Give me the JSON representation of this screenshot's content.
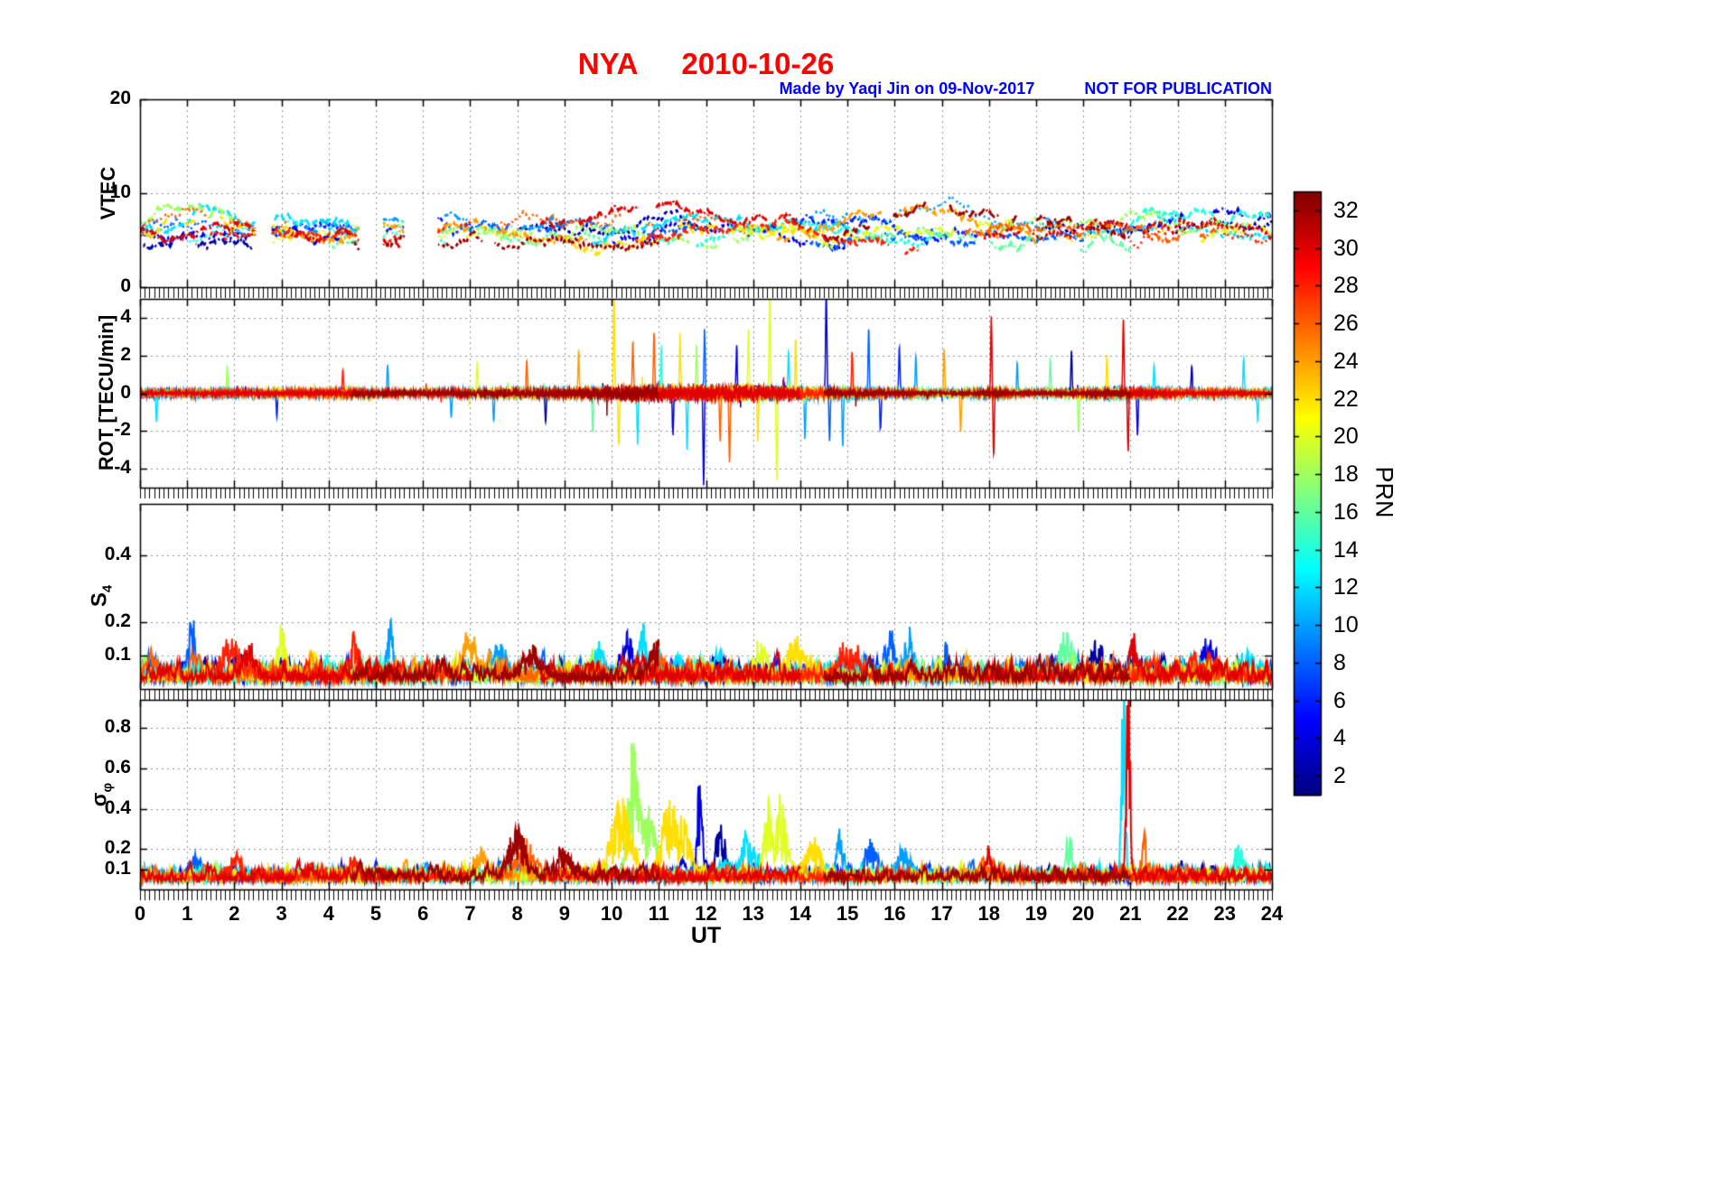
{
  "title": {
    "station": "NYA",
    "date": "2010-10-26"
  },
  "subtitle": {
    "made_by": "Made by Yaqi Jin on 09-Nov-2017",
    "warning": "NOT FOR PUBLICATION"
  },
  "x_axis": {
    "label": "UT",
    "min": 0,
    "max": 24,
    "tick_step": 1,
    "minor_tick_step": 0.1
  },
  "colorbar": {
    "label": "PRN",
    "min": 1,
    "max": 33,
    "ticks": [
      2,
      4,
      6,
      8,
      10,
      12,
      14,
      16,
      18,
      20,
      22,
      24,
      26,
      28,
      30,
      32
    ],
    "colormap": "jet"
  },
  "chart_data": {
    "type": "line",
    "title": "NYA 2010-10-26",
    "xlabel": "UT",
    "x_range": [
      0,
      24
    ],
    "colormap": "jet",
    "prn_range": [
      1,
      32
    ],
    "panels": [
      {
        "id": "vtec",
        "ylabel": "VTEC",
        "ymin": 0,
        "ymax": 20,
        "yticks": [
          0,
          10,
          20
        ]
      },
      {
        "id": "rot",
        "ylabel": "ROT [TECU/min]",
        "ymin": -5,
        "ymax": 5,
        "yticks": [
          -4,
          -2,
          0,
          2,
          4
        ]
      },
      {
        "id": "s4",
        "ylabel_main": "S",
        "ylabel_sub": "4",
        "ymin": 0,
        "ymax": 0.554,
        "yticks": [
          0.1,
          0.2,
          0.4
        ]
      },
      {
        "id": "sigma",
        "ylabel_main": "σ",
        "ylabel_sub": "φ",
        "ymin": 0,
        "ymax": 0.94,
        "yticks": [
          0.1,
          0.2,
          0.4,
          0.6,
          0.8
        ]
      }
    ],
    "passes": [
      [
        2,
        0,
        2.4
      ],
      [
        2,
        8,
        13.5
      ],
      [
        2,
        19,
        24
      ],
      [
        4,
        0,
        4.5
      ],
      [
        4,
        10,
        15
      ],
      [
        4,
        20.5,
        24
      ],
      [
        6,
        2.8,
        7
      ],
      [
        6,
        13,
        18
      ],
      [
        8,
        0,
        3
      ],
      [
        8,
        6.8,
        12
      ],
      [
        8,
        14.2,
        20
      ],
      [
        10,
        3.5,
        9
      ],
      [
        10,
        14,
        19.5
      ],
      [
        12,
        0,
        5
      ],
      [
        12,
        9.5,
        15.5
      ],
      [
        12,
        20,
        24
      ],
      [
        14,
        1,
        6.5
      ],
      [
        14,
        11,
        17
      ],
      [
        14,
        21,
        24
      ],
      [
        16,
        4,
        10
      ],
      [
        16,
        15.5,
        21
      ],
      [
        18,
        0,
        2.2
      ],
      [
        18,
        7,
        13
      ],
      [
        18,
        18,
        23.5
      ],
      [
        20,
        2.5,
        8.5
      ],
      [
        20,
        12.5,
        18.5
      ],
      [
        20,
        22.5,
        24
      ],
      [
        22,
        0,
        4.8
      ],
      [
        22,
        9,
        14.5
      ],
      [
        22,
        19.5,
        24
      ],
      [
        24,
        3,
        9.5
      ],
      [
        24,
        13.5,
        19
      ],
      [
        26,
        0,
        3.8
      ],
      [
        26,
        7.5,
        13
      ],
      [
        26,
        17.5,
        23
      ],
      [
        28,
        1.5,
        7
      ],
      [
        28,
        10.5,
        16.5
      ],
      [
        28,
        21,
        24
      ],
      [
        30,
        0,
        5.5
      ],
      [
        30,
        8.5,
        14
      ],
      [
        30,
        17.9,
        24
      ],
      [
        32,
        4.5,
        11
      ],
      [
        32,
        14.5,
        21
      ]
    ],
    "generation": {
      "seed": 42,
      "vtec": {
        "base_range": [
          4.5,
          7.0
        ],
        "bump_max": 3.5,
        "dash_patterns": [
          [
            8,
            5
          ],
          [
            2,
            5
          ],
          [
            10,
            4,
            2,
            4
          ],
          [
            4,
            4
          ]
        ],
        "gaps": [
          [
            2.45,
            2.8
          ],
          [
            4.65,
            5.15
          ],
          [
            5.6,
            6.3
          ]
        ]
      },
      "rot": {
        "base_amp": 0.28,
        "envelope_base": 0.35,
        "envelope": [
          [
            12.3,
            2.8,
            1.0
          ],
          [
            20.9,
            0.7,
            0.5
          ],
          [
            18.05,
            0.4,
            0.35
          ],
          [
            7.8,
            0.9,
            0.25
          ],
          [
            10.2,
            0.6,
            0.25
          ],
          [
            4.45,
            0.3,
            0.15
          ]
        ],
        "events": [
          [
            0.35,
            12,
            -1.5
          ],
          [
            1.85,
            18,
            1.4
          ],
          [
            2.9,
            6,
            -1.2
          ],
          [
            4.3,
            28,
            1.2
          ],
          [
            5.25,
            10,
            1.5
          ],
          [
            6.6,
            10,
            -1.3
          ],
          [
            7.15,
            20,
            1.6
          ],
          [
            7.5,
            10,
            -1.5
          ],
          [
            8.2,
            26,
            1.8
          ],
          [
            8.6,
            2,
            -1.6
          ],
          [
            9.3,
            24,
            2.2
          ],
          [
            9.6,
            16,
            -2.0
          ],
          [
            10.05,
            22,
            5.2
          ],
          [
            10.15,
            22,
            -2.5
          ],
          [
            10.45,
            26,
            2.8
          ],
          [
            10.55,
            12,
            -2.6
          ],
          [
            10.9,
            26,
            3.2
          ],
          [
            11.05,
            14,
            2.4
          ],
          [
            11.3,
            4,
            -2.2
          ],
          [
            11.45,
            22,
            3.0
          ],
          [
            11.6,
            12,
            -2.8
          ],
          [
            11.8,
            18,
            2.6
          ],
          [
            11.95,
            4,
            -4.9
          ],
          [
            11.97,
            8,
            3.4
          ],
          [
            12.3,
            26,
            -2.6
          ],
          [
            12.5,
            26,
            -3.6
          ],
          [
            12.65,
            4,
            2.6
          ],
          [
            12.9,
            20,
            3.2
          ],
          [
            13.1,
            22,
            -2.4
          ],
          [
            13.35,
            20,
            4.9
          ],
          [
            13.5,
            20,
            -4.4
          ],
          [
            13.75,
            12,
            2.2
          ],
          [
            13.9,
            22,
            2.8
          ],
          [
            14.1,
            10,
            -2.4
          ],
          [
            14.55,
            4,
            5.8
          ],
          [
            14.62,
            8,
            -2.5
          ],
          [
            14.9,
            10,
            -2.8
          ],
          [
            15.1,
            28,
            2.2
          ],
          [
            15.45,
            8,
            3.4
          ],
          [
            15.7,
            6,
            -2.0
          ],
          [
            16.1,
            6,
            2.5
          ],
          [
            16.45,
            10,
            2.0
          ],
          [
            17.05,
            24,
            2.3
          ],
          [
            17.4,
            24,
            -2.0
          ],
          [
            18.05,
            30,
            3.9
          ],
          [
            18.1,
            30,
            -3.3
          ],
          [
            18.6,
            10,
            1.6
          ],
          [
            19.3,
            16,
            1.8
          ],
          [
            19.75,
            2,
            2.3
          ],
          [
            19.9,
            18,
            -2.0
          ],
          [
            20.5,
            22,
            2.0
          ],
          [
            20.85,
            30,
            3.9
          ],
          [
            20.95,
            30,
            -3.1
          ],
          [
            21.15,
            4,
            -2.3
          ],
          [
            21.5,
            12,
            1.6
          ],
          [
            22.3,
            2,
            1.5
          ],
          [
            23.4,
            12,
            1.9
          ],
          [
            23.7,
            12,
            -1.5
          ]
        ]
      },
      "s4": {
        "baseline": 0.025,
        "events": [
          [
            1.1,
            8,
            0.12,
            0.1
          ],
          [
            1.9,
            28,
            0.07,
            0.3
          ],
          [
            2.3,
            30,
            0.06,
            0.2
          ],
          [
            3.0,
            20,
            0.08,
            0.15
          ],
          [
            4.55,
            28,
            0.1,
            0.12
          ],
          [
            5.3,
            10,
            0.13,
            0.1
          ],
          [
            7.0,
            24,
            0.07,
            0.3
          ],
          [
            7.6,
            10,
            0.06,
            0.2
          ],
          [
            8.3,
            32,
            0.05,
            0.3
          ],
          [
            9.7,
            12,
            0.06,
            0.2
          ],
          [
            10.35,
            4,
            0.08,
            0.15
          ],
          [
            10.65,
            12,
            0.11,
            0.1
          ],
          [
            10.95,
            32,
            0.07,
            0.2
          ],
          [
            13.15,
            20,
            0.07,
            0.2
          ],
          [
            13.9,
            22,
            0.08,
            0.2
          ],
          [
            15.0,
            28,
            0.06,
            0.3
          ],
          [
            15.9,
            8,
            0.1,
            0.12
          ],
          [
            16.3,
            10,
            0.08,
            0.15
          ],
          [
            17.1,
            8,
            0.07,
            0.1
          ],
          [
            19.6,
            16,
            0.09,
            0.2
          ],
          [
            20.3,
            2,
            0.06,
            0.2
          ],
          [
            21.05,
            30,
            0.09,
            0.1
          ],
          [
            22.6,
            4,
            0.06,
            0.2
          ],
          [
            23.5,
            12,
            0.05,
            0.2
          ]
        ]
      },
      "sigma": {
        "baseline": 0.045,
        "events": [
          [
            1.2,
            8,
            0.06,
            0.2
          ],
          [
            2.0,
            28,
            0.06,
            0.2
          ],
          [
            4.5,
            28,
            0.07,
            0.15
          ],
          [
            7.2,
            24,
            0.08,
            0.2
          ],
          [
            8.0,
            32,
            0.17,
            0.25
          ],
          [
            8.15,
            26,
            0.12,
            0.2
          ],
          [
            9.0,
            32,
            0.08,
            0.3
          ],
          [
            10.2,
            22,
            0.25,
            0.3
          ],
          [
            10.45,
            18,
            0.42,
            0.15
          ],
          [
            10.8,
            18,
            0.22,
            0.2
          ],
          [
            11.15,
            22,
            0.2,
            0.2
          ],
          [
            11.5,
            22,
            0.18,
            0.25
          ],
          [
            11.85,
            4,
            0.32,
            0.08
          ],
          [
            12.3,
            2,
            0.16,
            0.15
          ],
          [
            12.9,
            12,
            0.14,
            0.2
          ],
          [
            13.3,
            20,
            0.27,
            0.12
          ],
          [
            13.6,
            20,
            0.24,
            0.15
          ],
          [
            14.3,
            22,
            0.12,
            0.3
          ],
          [
            14.85,
            10,
            0.14,
            0.12
          ],
          [
            15.5,
            8,
            0.12,
            0.2
          ],
          [
            16.2,
            10,
            0.1,
            0.2
          ],
          [
            18.0,
            30,
            0.1,
            0.1
          ],
          [
            19.7,
            16,
            0.13,
            0.1
          ],
          [
            20.85,
            12,
            0.85,
            0.05
          ],
          [
            20.95,
            30,
            0.75,
            0.06
          ],
          [
            21.3,
            26,
            0.12,
            0.1
          ],
          [
            23.3,
            14,
            0.1,
            0.15
          ]
        ]
      }
    }
  }
}
